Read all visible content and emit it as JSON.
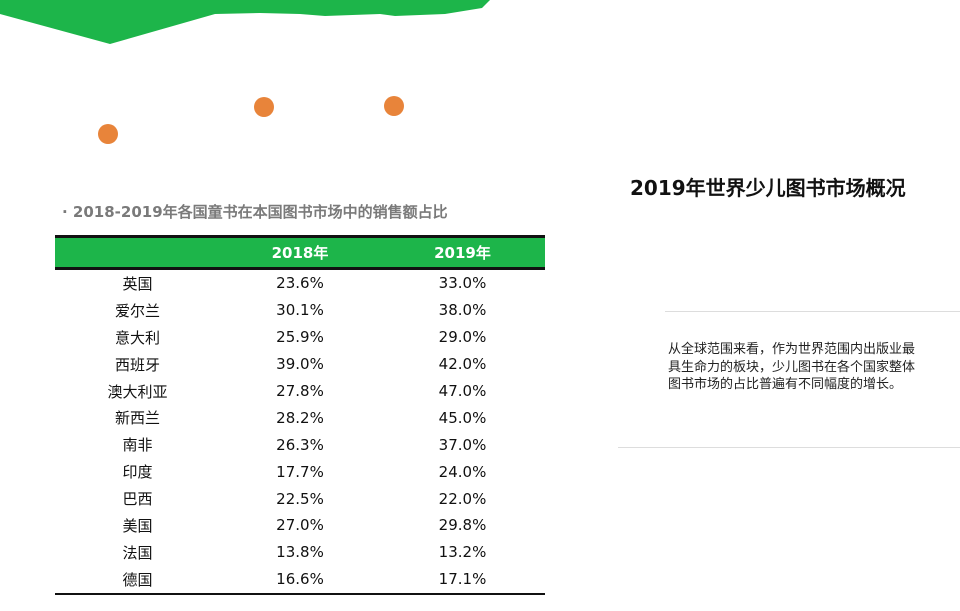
{
  "header": {
    "title": "2019年世界少儿图书市场概况"
  },
  "table_section": {
    "subtitle": "· 2018-2019年各国童书在本国图书市场中的销售额占比",
    "columns": [
      "",
      "2018年",
      "2019年"
    ],
    "rows": [
      {
        "country": "英国",
        "y2018": "23.6%",
        "y2019": "33.0%"
      },
      {
        "country": "爱尔兰",
        "y2018": "30.1%",
        "y2019": "38.0%"
      },
      {
        "country": "意大利",
        "y2018": "25.9%",
        "y2019": "29.0%"
      },
      {
        "country": "西班牙",
        "y2018": "39.0%",
        "y2019": "42.0%"
      },
      {
        "country": "澳大利亚",
        "y2018": "27.8%",
        "y2019": "47.0%"
      },
      {
        "country": "新西兰",
        "y2018": "28.2%",
        "y2019": "45.0%"
      },
      {
        "country": "南非",
        "y2018": "26.3%",
        "y2019": "37.0%"
      },
      {
        "country": "印度",
        "y2018": "17.7%",
        "y2019": "24.0%"
      },
      {
        "country": "巴西",
        "y2018": "22.5%",
        "y2019": "22.0%"
      },
      {
        "country": "美国",
        "y2018": "27.0%",
        "y2019": "29.8%"
      },
      {
        "country": "法国",
        "y2018": "13.8%",
        "y2019": "13.2%"
      },
      {
        "country": "德国",
        "y2018": "16.6%",
        "y2019": "17.1%"
      }
    ]
  },
  "description": {
    "text": "从全球范围来看，作为世界范围内出版业最具生命力的板块，少儿图书在各个国家整体图书市场的占比普遍有不同幅度的增长。"
  },
  "colors": {
    "accent_green": "#1db54a",
    "dot_orange": "#e8843a"
  }
}
